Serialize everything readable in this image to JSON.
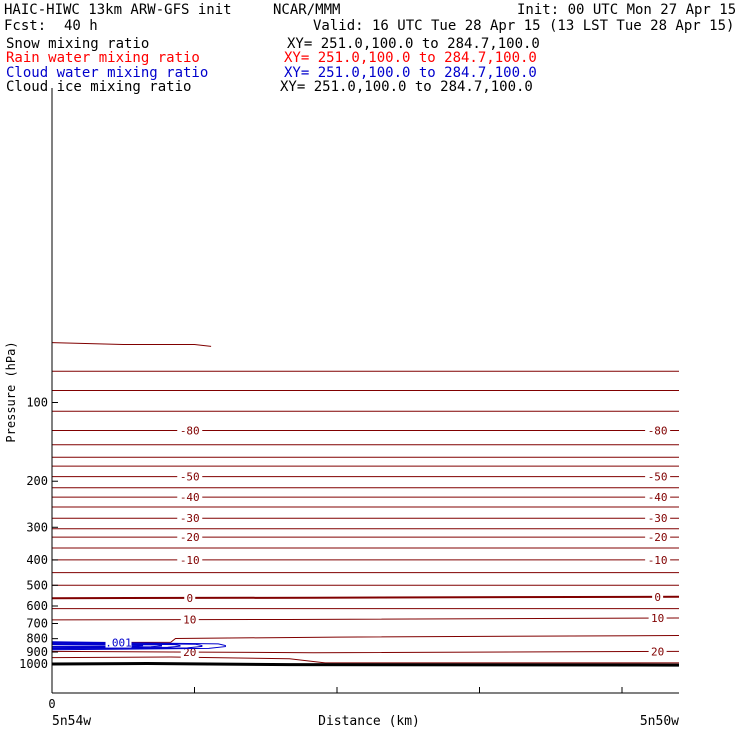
{
  "header": {
    "title": "HAIC-HIWC 13km ARW-GFS init",
    "org": "NCAR/MMM",
    "init": "Init: 00 UTC Mon 27 Apr 15",
    "fcst_label": "Fcst:",
    "fcst_value": "40 h",
    "valid": "Valid: 16 UTC Tue 28 Apr 15 (13 LST Tue 28 Apr 15)"
  },
  "fields": [
    {
      "name": "Snow mixing ratio",
      "xy": "XY= 251.0,100.0 to 284.7,100.0",
      "color": "#000000"
    },
    {
      "name": "Rain water mixing ratio",
      "xy": "XY= 251.0,100.0 to 284.7,100.0",
      "color": "#ff0000"
    },
    {
      "name": "Cloud water mixing ratio",
      "xy": "XY= 251.0,100.0 to 284.7,100.0",
      "color": "#0000cc"
    },
    {
      "name": "Cloud ice mixing ratio",
      "xy": "XY= 251.0,100.0 to 284.7,100.0",
      "color": "#000000"
    }
  ],
  "chart_data": {
    "type": "line",
    "title": "",
    "xlabel": "Distance (km)",
    "ylabel": "Pressure (hPa)",
    "x_range": [
      0,
      264
    ],
    "y_range": [
      1050,
      72
    ],
    "y_ticks": [
      100,
      200,
      300,
      400,
      500,
      600,
      700,
      800,
      900,
      1000
    ],
    "x_ticks": [
      0,
      60,
      120,
      180,
      240
    ],
    "x_tick_labels": [
      {
        "x": 0,
        "label": "0"
      }
    ],
    "x_endpoint_labels": {
      "left": "5n54w",
      "right": "5n50w"
    },
    "isotherm_color": "#800000",
    "cloud_water_color": "#0000cc",
    "ground_color": "#000000",
    "temperature_levels": [
      {
        "label": "-80",
        "x": [
          0,
          264
        ],
        "p": [
          128,
          128
        ]
      },
      {
        "label": "-50",
        "x": [
          0,
          264
        ],
        "p": [
          192,
          192
        ]
      },
      {
        "label": "-40",
        "x": [
          0,
          264
        ],
        "p": [
          230,
          230
        ]
      },
      {
        "label": "-30",
        "x": [
          0,
          264
        ],
        "p": [
          277,
          277
        ]
      },
      {
        "label": "-20",
        "x": [
          0,
          264
        ],
        "p": [
          327,
          327
        ]
      },
      {
        "label": "-10",
        "x": [
          0,
          264
        ],
        "p": [
          400,
          400
        ]
      },
      {
        "label": "0",
        "x": [
          0,
          110,
          264
        ],
        "p": [
          560,
          558,
          553
        ]
      },
      {
        "label": "10",
        "x": [
          0,
          100,
          264
        ],
        "p": [
          678,
          676,
          667
        ]
      },
      {
        "label": "20",
        "x": [
          0,
          50,
          110,
          264
        ],
        "p": [
          895,
          900,
          905,
          895
        ]
      }
    ],
    "other_isolines": [
      {
        "x": [
          0,
          30,
          60,
          67
        ],
        "p": [
          59,
          60,
          60,
          61
        ]
      },
      {
        "x": [
          0,
          264
        ],
        "p": [
          76,
          76
        ]
      },
      {
        "x": [
          0,
          264
        ],
        "p": [
          90,
          90
        ]
      },
      {
        "x": [
          0,
          264
        ],
        "p": [
          108,
          108
        ]
      },
      {
        "x": [
          0,
          264
        ],
        "p": [
          145,
          145
        ]
      },
      {
        "x": [
          0,
          264
        ],
        "p": [
          162,
          162
        ]
      },
      {
        "x": [
          0,
          264
        ],
        "p": [
          175,
          175
        ]
      },
      {
        "x": [
          0,
          264
        ],
        "p": [
          212,
          212
        ]
      },
      {
        "x": [
          0,
          264
        ],
        "p": [
          251,
          251
        ]
      },
      {
        "x": [
          0,
          264
        ],
        "p": [
          304,
          304
        ]
      },
      {
        "x": [
          0,
          264
        ],
        "p": [
          360,
          360
        ]
      },
      {
        "x": [
          0,
          264
        ],
        "p": [
          447,
          447
        ]
      },
      {
        "x": [
          0,
          264
        ],
        "p": [
          500,
          500
        ]
      },
      {
        "x": [
          0,
          264
        ],
        "p": [
          614,
          614
        ]
      },
      {
        "x": [
          0,
          50,
          52,
          120,
          264
        ],
        "p": [
          828,
          826,
          799,
          789,
          778
        ]
      },
      {
        "x": [
          0,
          50,
          100,
          115,
          264
        ],
        "p": [
          945,
          940,
          955,
          990,
          990
        ]
      }
    ],
    "ground_line": {
      "x": [
        0,
        40,
        100,
        264
      ],
      "p": [
        1000,
        996,
        1005,
        1010
      ]
    },
    "cloud_water_contours": [
      {
        "label": ".001",
        "x": [
          0,
          70,
          73,
          73,
          66,
          0
        ],
        "p": [
          822,
          838,
          850,
          858,
          872,
          882
        ]
      }
    ]
  }
}
